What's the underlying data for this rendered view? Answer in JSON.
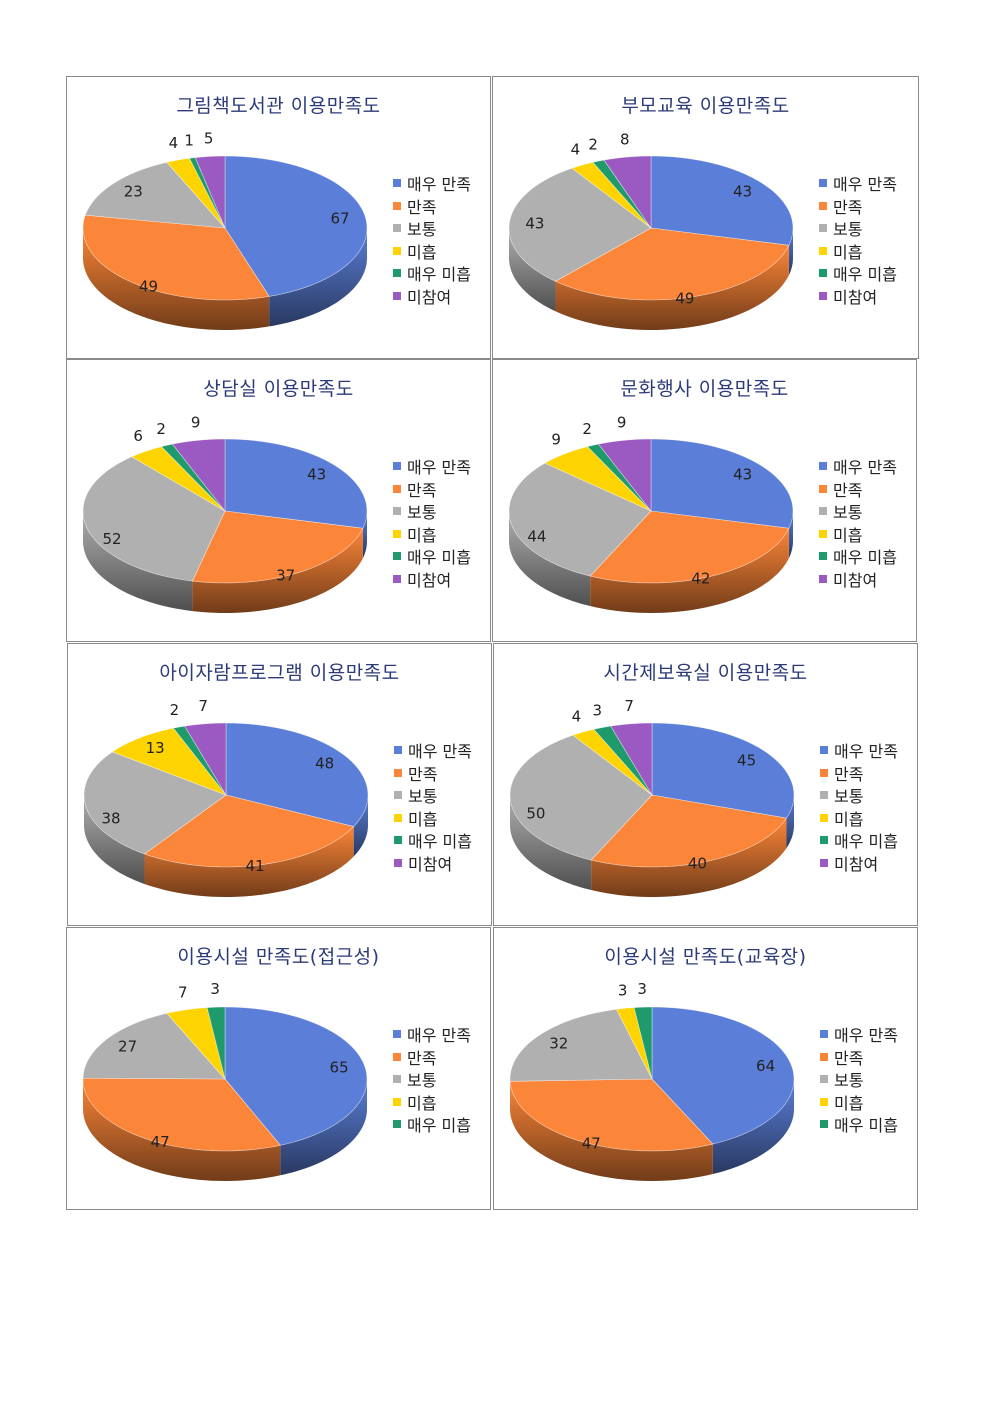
{
  "series_names": [
    "매우 만족",
    "만족",
    "보통",
    "미흡",
    "매우 미흡",
    "미참여"
  ],
  "colors": [
    "#5b7fd8",
    "#fb8538",
    "#b0b0b0",
    "#fdd300",
    "#1f9a6a",
    "#9b59c2"
  ],
  "chart_data": [
    {
      "type": "pie",
      "title": "그림책도서관 이용만족도",
      "categories": [
        "매우 만족",
        "만족",
        "보통",
        "미흡",
        "매우 미흡",
        "미참여"
      ],
      "values": [
        67,
        49,
        23,
        4,
        1,
        5
      ]
    },
    {
      "type": "pie",
      "title": "부모교육 이용만족도",
      "categories": [
        "매우 만족",
        "만족",
        "보통",
        "미흡",
        "매우 미흡",
        "미참여"
      ],
      "values": [
        43,
        49,
        43,
        4,
        2,
        8
      ]
    },
    {
      "type": "pie",
      "title": "상담실 이용만족도",
      "categories": [
        "매우 만족",
        "만족",
        "보통",
        "미흡",
        "매우 미흡",
        "미참여"
      ],
      "values": [
        43,
        37,
        52,
        6,
        2,
        9
      ]
    },
    {
      "type": "pie",
      "title": "문화행사 이용만족도",
      "categories": [
        "매우 만족",
        "만족",
        "보통",
        "미흡",
        "매우 미흡",
        "미참여"
      ],
      "values": [
        43,
        42,
        44,
        9,
        2,
        9
      ]
    },
    {
      "type": "pie",
      "title": "아이자람프로그램 이용만족도",
      "categories": [
        "매우 만족",
        "만족",
        "보통",
        "미흡",
        "매우 미흡",
        "미참여"
      ],
      "values": [
        48,
        41,
        38,
        13,
        2,
        7
      ]
    },
    {
      "type": "pie",
      "title": "시간제보육실 이용만족도",
      "categories": [
        "매우 만족",
        "만족",
        "보통",
        "미흡",
        "매우 미흡",
        "미참여"
      ],
      "values": [
        45,
        40,
        50,
        4,
        3,
        7
      ]
    },
    {
      "type": "pie",
      "title": "이용시설 만족도(접근성)",
      "categories": [
        "매우 만족",
        "만족",
        "보통",
        "미흡",
        "매우 미흡"
      ],
      "values": [
        65,
        47,
        27,
        7,
        3
      ]
    },
    {
      "type": "pie",
      "title": "이용시설 만족도(교육장)",
      "categories": [
        "매우 만족",
        "만족",
        "보통",
        "미흡",
        "매우 미흡"
      ],
      "values": [
        64,
        47,
        32,
        3,
        3
      ]
    }
  ]
}
